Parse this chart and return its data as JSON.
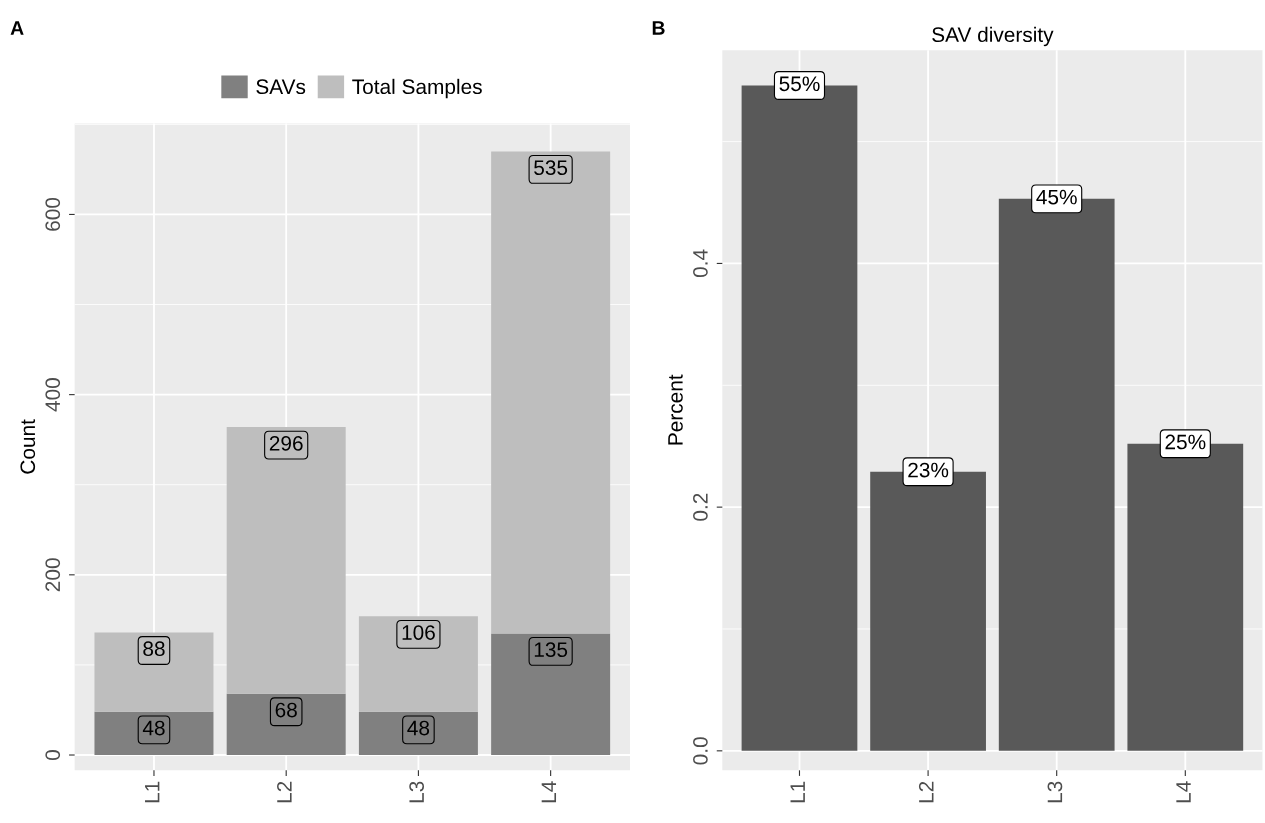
{
  "chart_data": [
    {
      "type": "bar",
      "stacked": true,
      "ylabel": "Count",
      "categories": [
        "L1",
        "L2",
        "L3",
        "L4"
      ],
      "series": [
        {
          "name": "SAVs",
          "color": "#808080",
          "values": [
            48,
            68,
            48,
            135
          ]
        },
        {
          "name": "Total Samples",
          "color": "#bebebe",
          "values": [
            88,
            296,
            106,
            535
          ]
        }
      ],
      "data_labels": true,
      "ylim": [
        -17,
        701
      ],
      "yticks": [
        0,
        200,
        400,
        600
      ],
      "grid": true,
      "legend": "top",
      "annotations": [
        "A"
      ]
    },
    {
      "type": "bar",
      "title": "SAV diversity",
      "ylabel": "Percent",
      "categories": [
        "L1",
        "L2",
        "L3",
        "L4"
      ],
      "values": [
        0.546,
        0.229,
        0.453,
        0.252
      ],
      "color": "#595959",
      "value_labels": [
        "55%",
        "23%",
        "45%",
        "25%"
      ],
      "ylim": [
        -0.016,
        0.575
      ],
      "yticks": [
        {
          "value": 0.0,
          "label": "0.0"
        },
        {
          "value": 0.2,
          "label": "0.2"
        },
        {
          "value": 0.4,
          "label": "0.4"
        }
      ],
      "grid": true,
      "annotations": [
        "B"
      ]
    }
  ]
}
